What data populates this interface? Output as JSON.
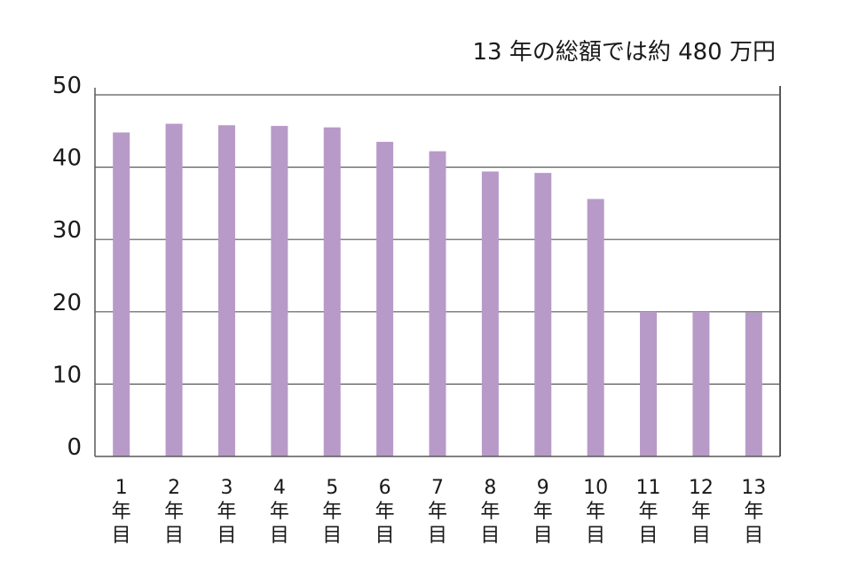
{
  "chart_data": {
    "type": "bar",
    "title": "",
    "annotation": "13 年の総額では約 480 万円",
    "xlabel": "",
    "ylabel": "",
    "categories": [
      "1年目",
      "2年目",
      "3年目",
      "4年目",
      "5年目",
      "6年目",
      "7年目",
      "8年目",
      "9年目",
      "10年目",
      "11年目",
      "12年目",
      "13年目"
    ],
    "category_numbers": [
      "1",
      "2",
      "3",
      "4",
      "5",
      "6",
      "7",
      "8",
      "9",
      "10",
      "11",
      "12",
      "13"
    ],
    "category_suffix_chars": [
      "年",
      "目"
    ],
    "values": [
      44.8,
      46.0,
      45.8,
      45.7,
      45.5,
      43.5,
      42.2,
      39.4,
      39.2,
      35.6,
      20.0,
      20.0,
      19.9
    ],
    "ylim": [
      0,
      50
    ],
    "yticks": [
      0,
      10,
      20,
      30,
      40,
      50
    ],
    "grid": true,
    "legend": "none",
    "colors": {
      "bar": "#b89ac8",
      "grid": "#595959",
      "axis": "#595959"
    }
  }
}
